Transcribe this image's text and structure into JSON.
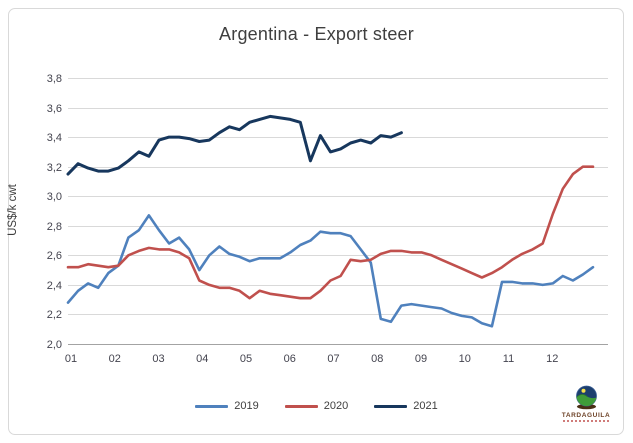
{
  "title": "Argentina - Export steer",
  "y_axis": {
    "label": "US$/k cwt",
    "ticks": [
      "3,8",
      "3,6",
      "3,4",
      "3,2",
      "3,0",
      "2,8",
      "2,6",
      "2,4",
      "2,2",
      "2,0"
    ],
    "tick_values": [
      3.8,
      3.6,
      3.4,
      3.2,
      3.0,
      2.8,
      2.6,
      2.4,
      2.2,
      2.0
    ]
  },
  "x_axis": {
    "ticks": [
      "01",
      "02",
      "03",
      "04",
      "05",
      "06",
      "07",
      "08",
      "09",
      "10",
      "11",
      "12"
    ]
  },
  "legend": {
    "position": "bottom"
  },
  "logo": {
    "text": "TARDAGUILA"
  },
  "colors": {
    "series_2019": "#4F81BD",
    "series_2020": "#C0504D",
    "series_2021": "#17375D",
    "gridline": "#D9D9D9",
    "axis_line": "#A3A3A3",
    "text": "#3F3F3F",
    "frame_border": "#D9D9D9"
  },
  "chart_data": {
    "type": "line",
    "title": "Argentina - Export steer",
    "xlabel": "",
    "ylabel": "US$/k cwt",
    "ylim": [
      2.0,
      3.8
    ],
    "xlim": [
      1,
      13
    ],
    "grid": true,
    "legend_position": "bottom",
    "x_unit": "month (weekly data points)",
    "x_months": [
      1.0,
      1.23,
      1.46,
      1.69,
      1.92,
      2.15,
      2.38,
      2.62,
      2.85,
      3.08,
      3.31,
      3.54,
      3.77,
      4.0,
      4.23,
      4.46,
      4.69,
      4.92,
      5.15,
      5.38,
      5.62,
      5.85,
      6.08,
      6.31,
      6.54,
      6.77,
      7.0,
      7.23,
      7.46,
      7.69,
      7.92,
      8.15,
      8.38,
      8.62,
      8.85,
      9.08,
      9.31,
      9.54,
      9.77,
      10.0,
      10.23,
      10.46,
      10.69,
      10.92,
      11.15,
      11.38,
      11.62,
      11.85,
      12.08,
      12.31,
      12.54,
      12.77,
      13.0
    ],
    "series": [
      {
        "name": "2019",
        "color": "#4F81BD",
        "stroke_width": 2.6,
        "values": [
          2.28,
          2.36,
          2.41,
          2.38,
          2.48,
          2.53,
          2.72,
          2.77,
          2.87,
          2.77,
          2.68,
          2.72,
          2.64,
          2.5,
          2.6,
          2.66,
          2.61,
          2.59,
          2.56,
          2.58,
          2.58,
          2.58,
          2.62,
          2.67,
          2.7,
          2.76,
          2.75,
          2.75,
          2.73,
          2.64,
          2.55,
          2.17,
          2.15,
          2.26,
          2.27,
          2.26,
          2.25,
          2.24,
          2.21,
          2.19,
          2.18,
          2.14,
          2.12,
          2.42,
          2.42,
          2.41,
          2.41,
          2.4,
          2.41,
          2.46,
          2.43,
          2.47,
          2.52
        ]
      },
      {
        "name": "2020",
        "color": "#C0504D",
        "stroke_width": 2.6,
        "values": [
          2.52,
          2.52,
          2.54,
          2.53,
          2.52,
          2.53,
          2.6,
          2.63,
          2.65,
          2.64,
          2.64,
          2.62,
          2.58,
          2.43,
          2.4,
          2.38,
          2.38,
          2.36,
          2.31,
          2.36,
          2.34,
          2.33,
          2.32,
          2.31,
          2.31,
          2.36,
          2.43,
          2.46,
          2.57,
          2.56,
          2.57,
          2.61,
          2.63,
          2.63,
          2.62,
          2.62,
          2.6,
          2.57,
          2.54,
          2.51,
          2.48,
          2.45,
          2.48,
          2.52,
          2.57,
          2.61,
          2.64,
          2.68,
          2.88,
          3.05,
          3.15,
          3.2,
          3.2
        ]
      },
      {
        "name": "2021",
        "color": "#17375D",
        "stroke_width": 3,
        "values": [
          3.15,
          3.22,
          3.19,
          3.17,
          3.17,
          3.19,
          3.24,
          3.3,
          3.27,
          3.38,
          3.4,
          3.4,
          3.39,
          3.37,
          3.38,
          3.43,
          3.47,
          3.45,
          3.5,
          3.52,
          3.54,
          3.53,
          3.52,
          3.5,
          3.24,
          3.41,
          3.3,
          3.32,
          3.36,
          3.38,
          3.36,
          3.41,
          3.4,
          3.43
        ]
      }
    ]
  }
}
